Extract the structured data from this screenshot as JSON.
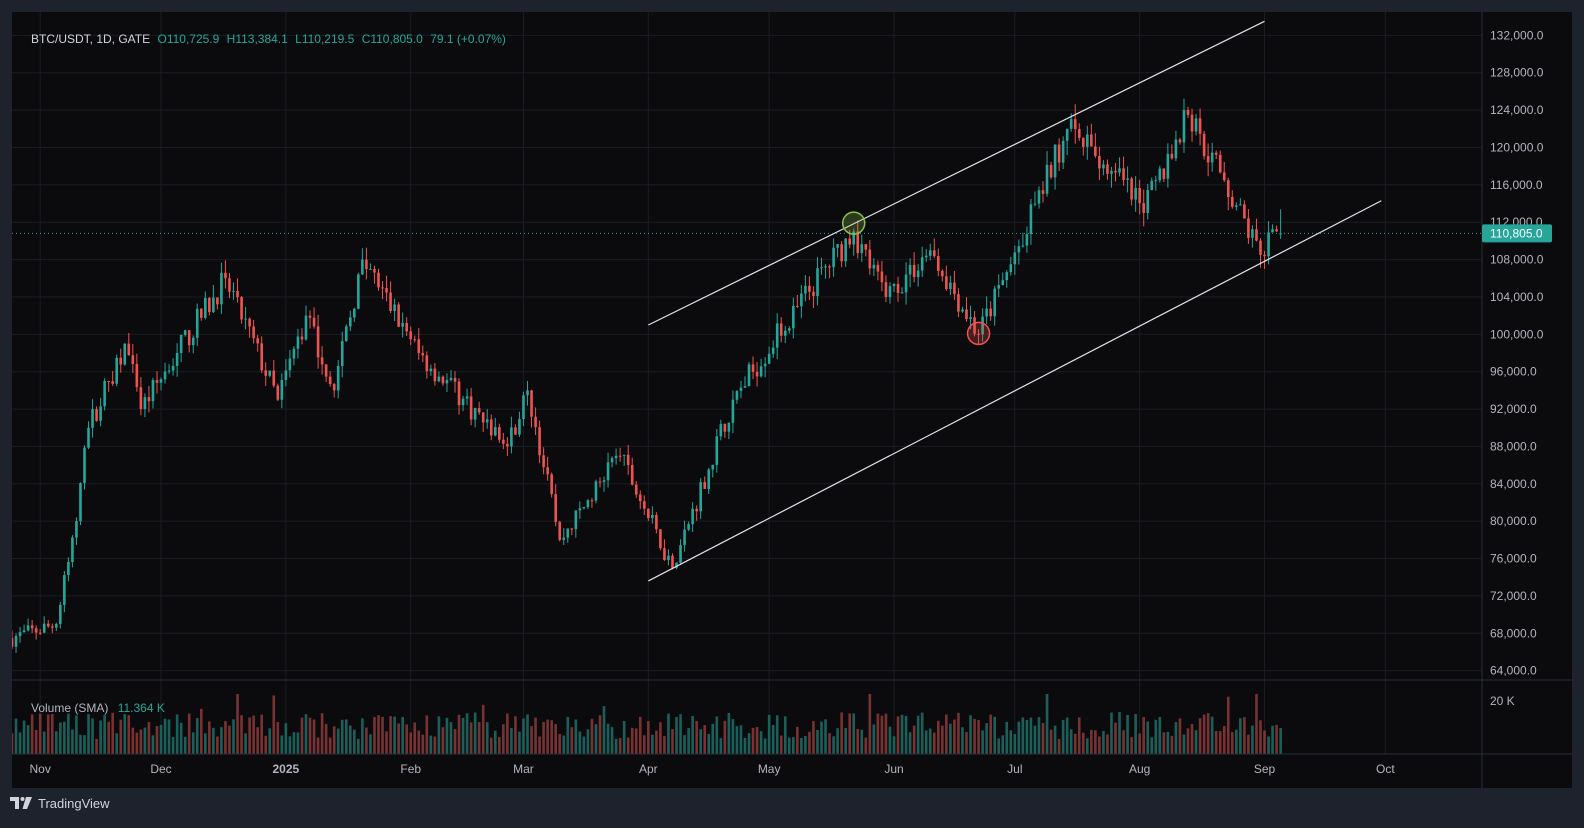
{
  "legend": {
    "symbol": "BTC/USDT, 1D, GATE",
    "open": "O110,725.9",
    "high": "H113,384.1",
    "low": "L110,219.5",
    "close": "C110,805.0",
    "change": "79.1 (+0.07%)"
  },
  "volume_legend": {
    "name": "Volume (SMA)",
    "value": "11.364 K"
  },
  "footer": {
    "brand": "TradingView"
  },
  "colors": {
    "up": "#26a69a",
    "down": "#ef5350",
    "price_line": "#26a69a",
    "background": "#0b0b0d"
  },
  "chart_data": {
    "type": "candlestick",
    "symbol": "BTC/USDT",
    "interval": "1D",
    "exchange": "GATE",
    "x_axis": {
      "tick_labels": [
        "Nov",
        "Dec",
        "2025",
        "Feb",
        "Mar",
        "Apr",
        "May",
        "Jun",
        "Jul",
        "Aug",
        "Sep",
        "Oct"
      ],
      "range": [
        "2024-10-25",
        "2025-10-25"
      ]
    },
    "y_axis": {
      "tick_labels": [
        "132,000.0",
        "128,000.0",
        "124,000.0",
        "120,000.0",
        "116,000.0",
        "112,000.0",
        "108,000.0",
        "104,000.0",
        "100,000.0",
        "96,000.0",
        "92,000.0",
        "88,000.0",
        "84,000.0",
        "80,000.0",
        "76,000.0",
        "72,000.0",
        "68,000.0",
        "64,000.0"
      ],
      "range": [
        63000,
        134500
      ]
    },
    "last_price": 110805.0,
    "last_price_label": "110,805.0",
    "volume_axis_label": "20 K",
    "key_prices": [
      {
        "date": "2024-10-25",
        "close": 67500
      },
      {
        "date": "2024-11-05",
        "close": 69000
      },
      {
        "date": "2024-11-10",
        "close": 80000
      },
      {
        "date": "2024-11-13",
        "close": 90000
      },
      {
        "date": "2024-11-22",
        "close": 99000
      },
      {
        "date": "2024-11-26",
        "close": 92000
      },
      {
        "date": "2024-12-05",
        "close": 98000
      },
      {
        "date": "2024-12-17",
        "close": 106000
      },
      {
        "date": "2024-12-30",
        "close": 93000
      },
      {
        "date": "2025-01-06",
        "close": 102000
      },
      {
        "date": "2025-01-13",
        "close": 94000
      },
      {
        "date": "2025-01-20",
        "close": 108000
      },
      {
        "date": "2025-02-03",
        "close": 98000
      },
      {
        "date": "2025-02-25",
        "close": 88000
      },
      {
        "date": "2025-03-02",
        "close": 94000
      },
      {
        "date": "2025-03-10",
        "close": 78000
      },
      {
        "date": "2025-03-25",
        "close": 87000
      },
      {
        "date": "2025-04-07",
        "close": 75000
      },
      {
        "date": "2025-04-22",
        "close": 93000
      },
      {
        "date": "2025-05-08",
        "close": 103000
      },
      {
        "date": "2025-05-22",
        "close": 111000
      },
      {
        "date": "2025-05-30",
        "close": 104000
      },
      {
        "date": "2025-06-10",
        "close": 109000
      },
      {
        "date": "2025-06-22",
        "close": 100000
      },
      {
        "date": "2025-06-30",
        "close": 107500
      },
      {
        "date": "2025-07-14",
        "close": 122000
      },
      {
        "date": "2025-07-25",
        "close": 117500
      },
      {
        "date": "2025-08-02",
        "close": 113000
      },
      {
        "date": "2025-08-13",
        "close": 123500
      },
      {
        "date": "2025-08-22",
        "close": 116500
      },
      {
        "date": "2025-08-31",
        "close": 108500
      },
      {
        "date": "2025-09-05",
        "close": 110805
      }
    ],
    "channel_lines": [
      {
        "from": {
          "date": "2025-04-01",
          "price": 101000
        },
        "to": {
          "date": "2025-09-01",
          "price": 133500
        }
      },
      {
        "from": {
          "date": "2025-04-01",
          "price": 73600
        },
        "to": {
          "date": "2025-09-30",
          "price": 114300
        }
      }
    ],
    "markers": [
      {
        "date": "2025-05-22",
        "price": 111900,
        "color": "#8bc34a"
      },
      {
        "date": "2025-06-22",
        "price": 100100,
        "color": "#ef5350"
      }
    ]
  }
}
